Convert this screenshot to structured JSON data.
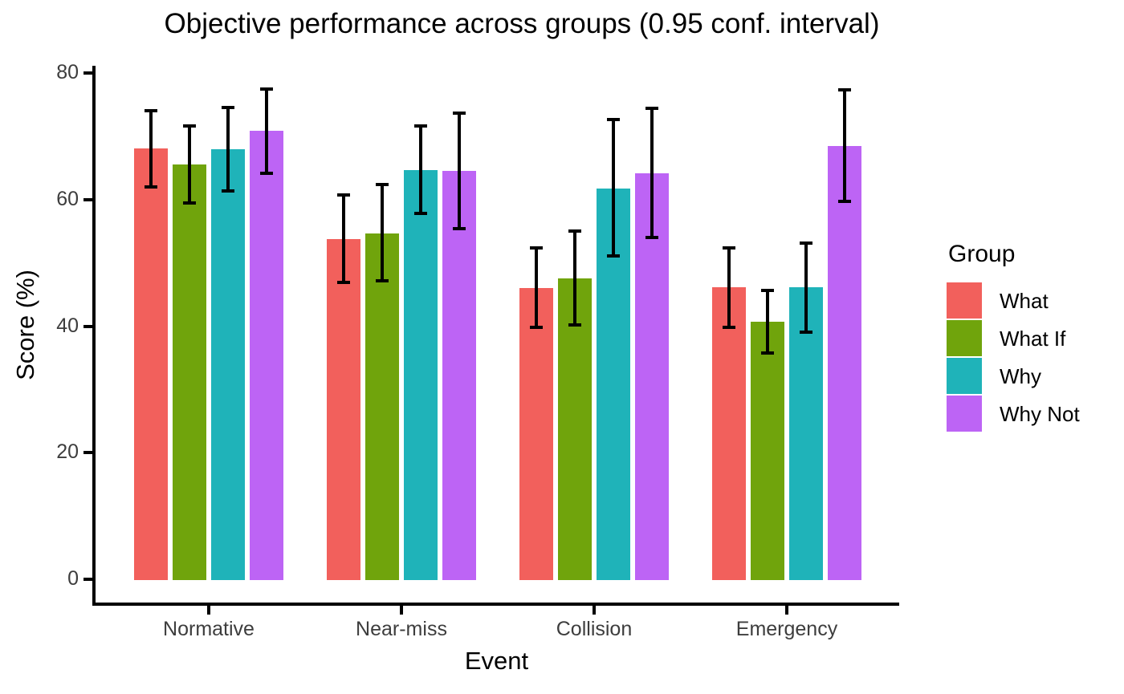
{
  "chart_data": {
    "type": "bar",
    "title": "Objective performance across groups (0.95 conf. interval)",
    "xlabel": "Event",
    "ylabel": "Score (%)",
    "categories": [
      "Normative",
      "Near-miss",
      "Collision",
      "Emergency"
    ],
    "yticks": [
      0,
      20,
      40,
      60,
      80
    ],
    "ylim": [
      0,
      80
    ],
    "grid": false,
    "legend_title": "Group",
    "legend_position": "right",
    "error_bars": {
      "confidence": 0.95,
      "color": "#000000"
    },
    "series": [
      {
        "name": "What",
        "color": "#F2605C",
        "values": [
          68.1,
          53.7,
          46.0,
          46.1
        ],
        "ci_low": [
          62.0,
          46.9,
          39.8,
          39.8
        ],
        "ci_high": [
          74.1,
          60.7,
          52.4,
          52.4
        ]
      },
      {
        "name": "What If",
        "color": "#70A40C",
        "values": [
          65.5,
          54.6,
          47.5,
          40.7
        ],
        "ci_low": [
          59.4,
          47.2,
          40.2,
          35.7
        ],
        "ci_high": [
          71.6,
          62.4,
          55.0,
          45.7
        ]
      },
      {
        "name": "Why",
        "color": "#1FB3B9",
        "values": [
          67.9,
          64.6,
          61.8,
          46.1
        ],
        "ci_low": [
          61.4,
          57.8,
          51.1,
          39.1
        ],
        "ci_high": [
          74.5,
          71.6,
          72.6,
          53.1
        ]
      },
      {
        "name": "Why Not",
        "color": "#BD64F5",
        "values": [
          70.9,
          64.5,
          64.2,
          68.5
        ],
        "ci_low": [
          64.1,
          55.4,
          54.0,
          59.7
        ],
        "ci_high": [
          77.5,
          73.6,
          74.4,
          77.3
        ]
      }
    ]
  }
}
